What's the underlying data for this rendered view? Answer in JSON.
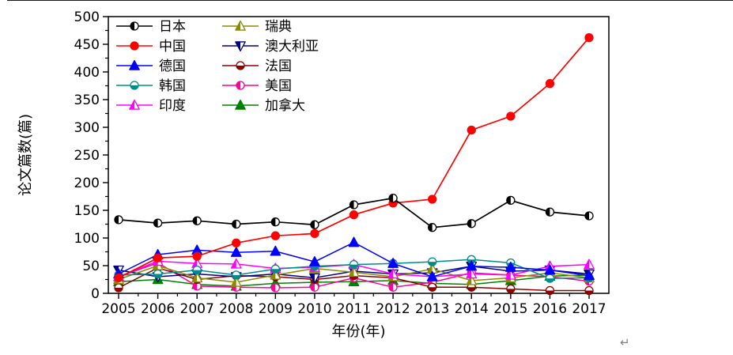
{
  "page": {
    "return_mark": "↵"
  },
  "chart_data": {
    "type": "line",
    "title": "",
    "xlabel": "年份(年)",
    "ylabel": "论文篇数(篇)",
    "x": [
      2005,
      2006,
      2007,
      2008,
      2009,
      2010,
      2011,
      2012,
      2013,
      2014,
      2015,
      2016,
      2017
    ],
    "ylim": [
      0,
      500
    ],
    "yticks": [
      0,
      50,
      100,
      150,
      200,
      250,
      300,
      350,
      400,
      450,
      500
    ],
    "ytick_minor_step": 25,
    "grid": false,
    "legend_position": "top-left-inside",
    "legend_columns": 2,
    "series": [
      {
        "id": "japan",
        "name": "日本",
        "color": "#000000",
        "marker": "circle",
        "marker_fill": "half",
        "values": [
          133,
          127,
          131,
          125,
          129,
          124,
          160,
          172,
          119,
          126,
          168,
          147,
          140
        ]
      },
      {
        "id": "china",
        "name": "中国",
        "color": "#ff0000",
        "marker": "circle",
        "marker_fill": "full",
        "values": [
          28,
          64,
          67,
          91,
          104,
          108,
          142,
          163,
          170,
          295,
          320,
          379,
          462
        ]
      },
      {
        "id": "germany",
        "name": "德国",
        "color": "#0000ff",
        "marker": "triangle",
        "marker_fill": "full",
        "values": [
          35,
          70,
          78,
          74,
          76,
          57,
          92,
          54,
          30,
          49,
          47,
          42,
          32
        ]
      },
      {
        "id": "korea",
        "name": "韩国",
        "color": "#008b8b",
        "marker": "circle",
        "marker_fill": "half-bottom",
        "values": [
          33,
          35,
          42,
          33,
          44,
          49,
          52,
          54,
          57,
          61,
          55,
          27,
          28
        ]
      },
      {
        "id": "india",
        "name": "印度",
        "color": "#ff00ff",
        "marker": "triangle",
        "marker_fill": "half",
        "values": [
          30,
          58,
          54,
          53,
          45,
          47,
          52,
          35,
          30,
          35,
          33,
          49,
          52
        ]
      },
      {
        "id": "sweden",
        "name": "瑞典",
        "color": "#8b8b00",
        "marker": "triangle",
        "marker_fill": "half",
        "values": [
          25,
          50,
          28,
          20,
          33,
          45,
          38,
          30,
          44,
          23,
          28,
          37,
          28
        ]
      },
      {
        "id": "australia",
        "name": "澳大利亚",
        "color": "#000080",
        "marker": "triangle-down",
        "marker_fill": "half",
        "values": [
          42,
          30,
          35,
          30,
          35,
          28,
          40,
          35,
          37,
          49,
          40,
          42,
          35
        ]
      },
      {
        "id": "france",
        "name": "法国",
        "color": "#8b0000",
        "marker": "circle",
        "marker_fill": "half-bottom",
        "values": [
          10,
          46,
          25,
          32,
          30,
          25,
          32,
          28,
          11,
          11,
          8,
          5,
          5
        ]
      },
      {
        "id": "usa",
        "name": "美国",
        "color": "#ff0099",
        "marker": "circle",
        "marker_fill": "half",
        "values": [
          30,
          55,
          13,
          11,
          10,
          11,
          28,
          11,
          20,
          37,
          33,
          30,
          22
        ]
      },
      {
        "id": "canada",
        "name": "加拿大",
        "color": "#008000",
        "marker": "triangle",
        "marker_fill": "full",
        "values": [
          21,
          25,
          16,
          13,
          18,
          20,
          21,
          23,
          18,
          16,
          23,
          31,
          33
        ]
      }
    ]
  }
}
